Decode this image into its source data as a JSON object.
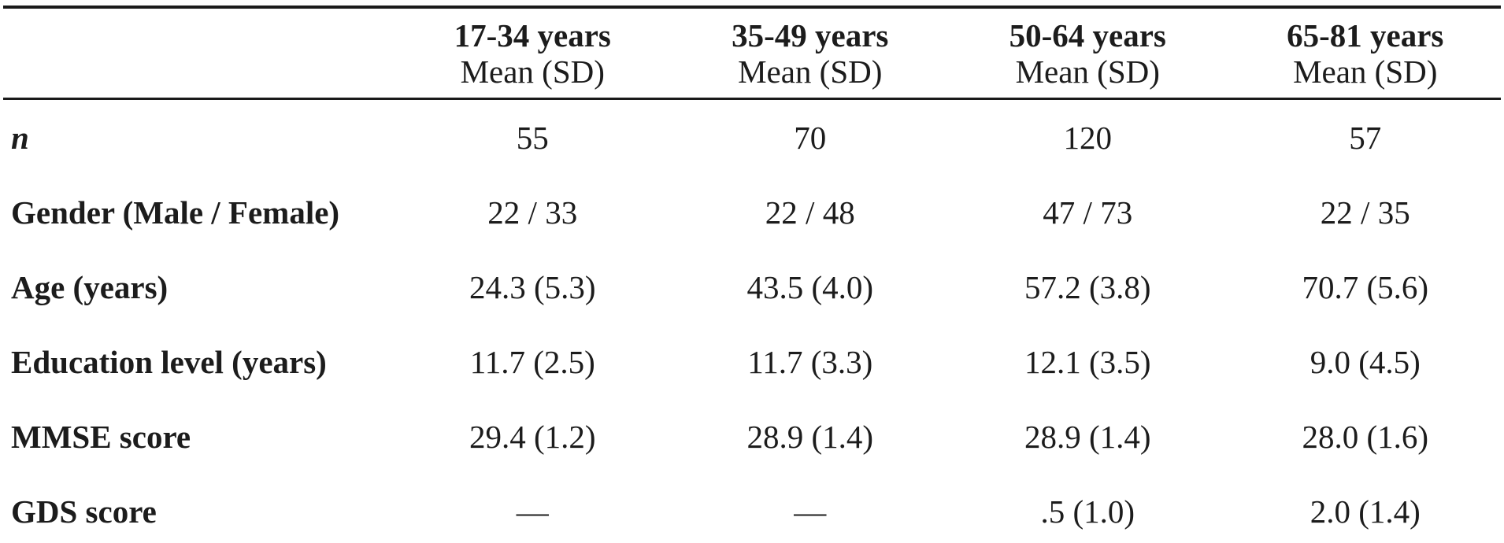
{
  "table": {
    "header": {
      "columns": [
        {
          "range": "17-34 years",
          "sub": "Mean (SD)"
        },
        {
          "range": "35-49 years",
          "sub": "Mean (SD)"
        },
        {
          "range": "50-64 years",
          "sub": "Mean (SD)"
        },
        {
          "range": "65-81 years",
          "sub": "Mean (SD)"
        }
      ]
    },
    "rows": [
      {
        "label": "n",
        "values": [
          "55",
          "70",
          "120",
          "57"
        ]
      },
      {
        "label": "Gender (Male / Female)",
        "values": [
          "22 / 33",
          "22 / 48",
          "47 / 73",
          "22 / 35"
        ]
      },
      {
        "label": "Age (years)",
        "values": [
          "24.3 (5.3)",
          "43.5 (4.0)",
          "57.2 (3.8)",
          "70.7 (5.6)"
        ]
      },
      {
        "label": "Education level (years)",
        "values": [
          "11.7 (2.5)",
          "11.7 (3.3)",
          "12.1 (3.5)",
          "9.0 (4.5)"
        ]
      },
      {
        "label": "MMSE score",
        "values": [
          "29.4 (1.2)",
          "28.9 (1.4)",
          "28.9 (1.4)",
          "28.0 (1.6)"
        ]
      },
      {
        "label": "GDS score",
        "values": [
          "—",
          "—",
          ".5 (1.0)",
          "2.0 (1.4)"
        ]
      }
    ]
  },
  "colors": {
    "text": "#1c1c1c",
    "rule": "#1a1a1a",
    "background": "#ffffff"
  }
}
